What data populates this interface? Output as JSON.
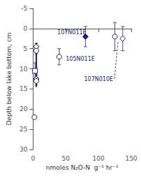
{
  "chart_data": {
    "type": "scatter",
    "xlabel": "nmoles N₂O-N  g⁻¹ hr⁻¹",
    "ylabel": "Depth below lake bottom, cm",
    "xlim": [
      0,
      150
    ],
    "ylim": [
      30,
      -5
    ],
    "xticks": [
      0,
      50,
      100,
      150
    ],
    "yticks": [
      -5,
      0,
      5,
      10,
      15,
      20,
      25,
      30
    ],
    "grid": false,
    "color": "#1a1a8c",
    "series": [
      {
        "marker": "open_diamond",
        "x": [
          5,
          5
        ],
        "values": [
          4.5,
          12.5
        ],
        "xerr": [
          3,
          3
        ],
        "yerr": [
          0.8,
          1.0
        ]
      },
      {
        "marker": "open_circle",
        "x": [
          5,
          5,
          2
        ],
        "values": [
          5.5,
          13,
          22
        ],
        "xerr": [
          2,
          2,
          1.5
        ],
        "yerr": [
          0.8,
          1.0,
          0
        ]
      },
      {
        "marker": "open_square",
        "x": [
          3
        ],
        "values": [
          10.5
        ],
        "xerr": [
          2
        ],
        "yerr": [
          2.0
        ]
      },
      {
        "type": "line",
        "x": [
          5,
          5
        ],
        "values": [
          3.5,
          14.5
        ]
      },
      {
        "marker": "filled_diamond",
        "x": [
          80
        ],
        "values": [
          2.0
        ],
        "xerr": [
          0
        ],
        "yerr": [
          2.5
        ]
      },
      {
        "marker": "open_circle",
        "x": [
          40
        ],
        "values": [
          7.0
        ],
        "xerr": [
          0
        ],
        "yerr": [
          2.0
        ]
      },
      {
        "marker": "open_circle",
        "x": [
          125
        ],
        "values": [
          2.0
        ],
        "xerr": [
          0
        ],
        "yerr": [
          3.5
        ]
      },
      {
        "marker": "open_diamond",
        "x": [
          137
        ],
        "values": [
          2.5
        ],
        "xerr": [
          0
        ],
        "yerr": [
          3.0
        ]
      }
    ],
    "annotations": [
      {
        "text": "107N011E",
        "x": 37,
        "y": 1.0
      },
      {
        "text": "105N011E",
        "x": 50,
        "y": 7.5
      },
      {
        "text": "107N010E",
        "x": 78,
        "y": 12.5,
        "arrow_to": [
          130,
          3.0
        ]
      }
    ]
  }
}
